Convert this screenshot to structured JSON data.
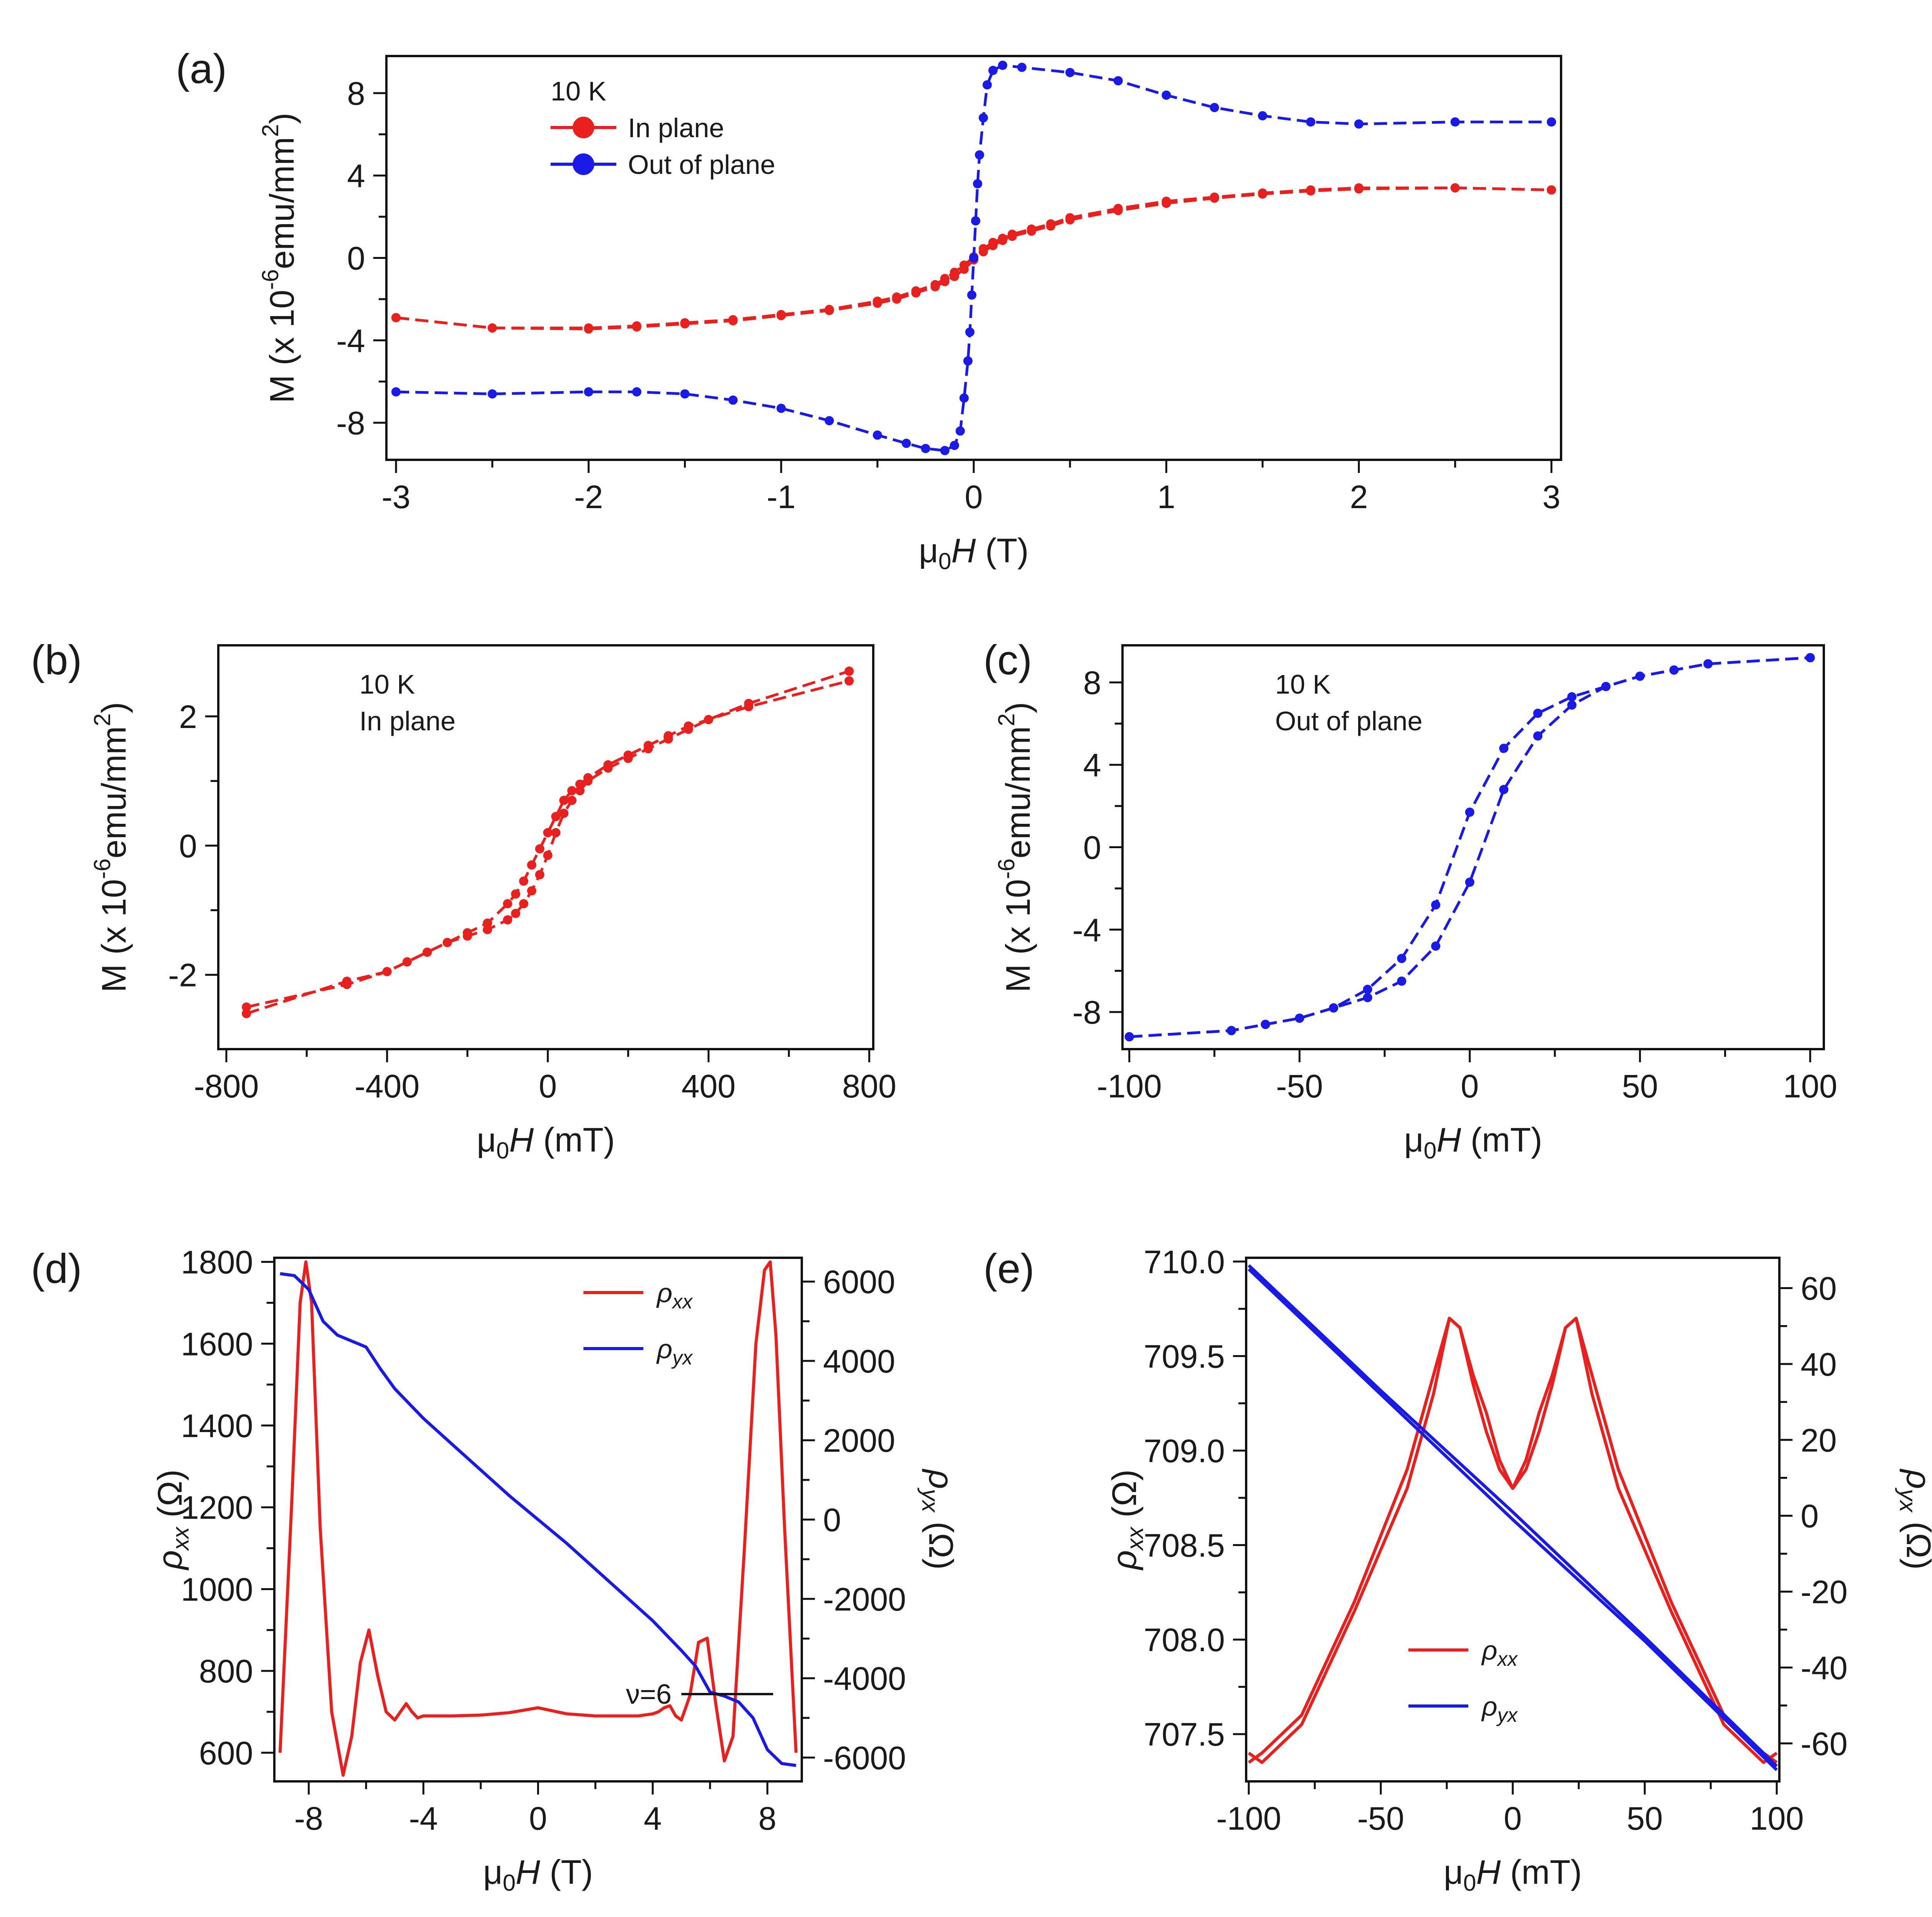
{
  "colors": {
    "in_plane": "#e8201e",
    "out_of_plane": "#1a1ae6",
    "rho_xx": "#e8201e",
    "rho_yx": "#1a1ae6"
  },
  "chart_data": [
    {
      "id": "a",
      "panel_label": "(a)",
      "type": "line",
      "xlabel": "μ0H (T)",
      "ylabel": "M (x 10^-6 emu/mm^2)",
      "xlim": [
        -3.05,
        3.05
      ],
      "ylim": [
        -9.8,
        9.8
      ],
      "xticks": [
        -3,
        -2,
        -1,
        0,
        1,
        2,
        3
      ],
      "yticks": [
        -8,
        -4,
        0,
        4,
        8
      ],
      "legend_title": "10 K",
      "legend": [
        "In plane",
        "Out of plane"
      ],
      "series": [
        {
          "name": "In plane",
          "color_key": "in_plane",
          "x": [
            -3,
            -2.5,
            -2,
            -1.75,
            -1.5,
            -1.25,
            -1,
            -0.75,
            -0.5,
            -0.4,
            -0.3,
            -0.2,
            -0.15,
            -0.1,
            -0.05,
            0,
            0.05,
            0.1,
            0.15,
            0.2,
            0.3,
            0.4,
            0.5,
            0.75,
            1,
            1.25,
            1.5,
            1.75,
            2,
            2.5,
            3
          ],
          "values_up": [
            -2.9,
            -3.4,
            -3.4,
            -3.3,
            -3.15,
            -3.0,
            -2.75,
            -2.5,
            -2.1,
            -1.9,
            -1.6,
            -1.3,
            -1.0,
            -0.7,
            -0.35,
            0.05,
            0.45,
            0.75,
            0.95,
            1.15,
            1.4,
            1.65,
            1.95,
            2.4,
            2.75,
            2.95,
            3.15,
            3.3,
            3.4,
            3.4,
            3.3
          ],
          "values_down": [
            -2.9,
            -3.4,
            -3.45,
            -3.35,
            -3.2,
            -3.05,
            -2.8,
            -2.55,
            -2.2,
            -2.0,
            -1.7,
            -1.4,
            -1.15,
            -0.9,
            -0.55,
            -0.1,
            0.3,
            0.6,
            0.85,
            1.05,
            1.3,
            1.55,
            1.85,
            2.3,
            2.65,
            2.9,
            3.1,
            3.25,
            3.35,
            3.4,
            3.3
          ]
        },
        {
          "name": "Out of plane",
          "color_key": "out_of_plane",
          "x": [
            -3,
            -2.5,
            -2,
            -1.75,
            -1.5,
            -1.25,
            -1,
            -0.75,
            -0.5,
            -0.35,
            -0.25,
            -0.15,
            -0.1,
            -0.07,
            -0.05,
            -0.03,
            -0.02,
            -0.01,
            0,
            0.01,
            0.02,
            0.03,
            0.05,
            0.07,
            0.1,
            0.15,
            0.25,
            0.5,
            0.75,
            1,
            1.25,
            1.5,
            1.75,
            2,
            2.5,
            3
          ],
          "values_up": [
            -6.5,
            -6.6,
            -6.5,
            -6.5,
            -6.6,
            -6.9,
            -7.3,
            -7.9,
            -8.6,
            -9.0,
            -9.25,
            -9.35,
            -9.1,
            -8.4,
            -6.8,
            -5.0,
            -3.6,
            -1.8,
            0.0,
            1.8,
            3.6,
            5.0,
            6.8,
            8.4,
            9.1,
            9.35,
            9.25,
            9.0,
            8.6,
            7.9,
            7.3,
            6.9,
            6.6,
            6.5,
            6.6,
            6.6
          ]
        }
      ]
    },
    {
      "id": "b",
      "panel_label": "(b)",
      "type": "line",
      "xlabel": "μ0H (mT)",
      "ylabel": "M (x 10^-6 emu/mm^2)",
      "xlim": [
        -820,
        810
      ],
      "ylim": [
        -3.15,
        3.1
      ],
      "xticks": [
        -800,
        -400,
        0,
        400,
        800
      ],
      "yticks": [
        -2,
        0,
        2
      ],
      "annotation": [
        "10 K",
        "In plane"
      ],
      "series": [
        {
          "name": "In plane",
          "color_key": "in_plane",
          "x": [
            -750,
            -500,
            -400,
            -350,
            -300,
            -250,
            -200,
            -150,
            -100,
            -80,
            -60,
            -40,
            -20,
            0,
            20,
            40,
            60,
            80,
            100,
            150,
            200,
            250,
            300,
            350,
            400,
            500,
            750
          ],
          "values_up": [
            -2.6,
            -2.1,
            -1.95,
            -1.8,
            -1.65,
            -1.5,
            -1.4,
            -1.3,
            -1.15,
            -1.05,
            -0.9,
            -0.7,
            -0.45,
            -0.15,
            0.2,
            0.5,
            0.7,
            0.85,
            1.0,
            1.2,
            1.35,
            1.5,
            1.65,
            1.8,
            1.95,
            2.2,
            2.7
          ],
          "values_down": [
            -2.5,
            -2.15,
            -1.95,
            -1.8,
            -1.65,
            -1.5,
            -1.35,
            -1.2,
            -0.9,
            -0.75,
            -0.55,
            -0.3,
            -0.05,
            0.2,
            0.45,
            0.7,
            0.85,
            0.95,
            1.05,
            1.25,
            1.4,
            1.55,
            1.7,
            1.85,
            1.95,
            2.15,
            2.55
          ]
        }
      ]
    },
    {
      "id": "c",
      "panel_label": "(c)",
      "type": "line",
      "xlabel": "μ0H (mT)",
      "ylabel": "M (x 10^-6 emu/mm^2)",
      "xlim": [
        -102,
        104
      ],
      "ylim": [
        -9.8,
        9.8
      ],
      "xticks": [
        -100,
        -50,
        0,
        50,
        100
      ],
      "yticks": [
        -8,
        -4,
        0,
        4,
        8
      ],
      "annotation": [
        "10 K",
        "Out of plane"
      ],
      "series": [
        {
          "name": "Out of plane",
          "color_key": "out_of_plane",
          "x": [
            -100,
            -70,
            -60,
            -50,
            -40,
            -30,
            -20,
            -10,
            0,
            10,
            20,
            30,
            40,
            50,
            60,
            70,
            100
          ],
          "values_up": [
            -9.2,
            -8.9,
            -8.6,
            -8.3,
            -7.8,
            -6.9,
            -5.4,
            -2.8,
            1.7,
            4.8,
            6.5,
            7.3,
            7.8,
            8.3,
            8.6,
            8.9,
            9.2
          ],
          "values_down": [
            -9.2,
            -8.9,
            -8.6,
            -8.3,
            -7.8,
            -7.3,
            -6.5,
            -4.8,
            -1.7,
            2.8,
            5.4,
            6.9,
            7.8,
            8.3,
            8.6,
            8.9,
            9.2
          ]
        }
      ]
    },
    {
      "id": "d",
      "panel_label": "(d)",
      "type": "line",
      "xlabel": "μ0H (T)",
      "ylabel": "ρxx (Ω)",
      "y2label": "ρyx (Ω)",
      "xlim": [
        -9.2,
        9.2
      ],
      "ylim": [
        530,
        1810
      ],
      "y2lim": [
        -6600,
        6600
      ],
      "xticks": [
        -8,
        -4,
        0,
        4,
        8
      ],
      "yticks": [
        600,
        800,
        1000,
        1200,
        1400,
        1600,
        1800
      ],
      "y2ticks": [
        -6000,
        -4000,
        -2000,
        0,
        2000,
        4000,
        6000
      ],
      "annotation": "ν=6",
      "legend": [
        "ρxx",
        "ρyx"
      ],
      "series": [
        {
          "name": "ρxx",
          "color_key": "rho_xx",
          "axis": "left",
          "x": [
            -9.0,
            -8.6,
            -8.3,
            -8.1,
            -7.9,
            -7.6,
            -7.2,
            -6.8,
            -6.5,
            -6.2,
            -5.9,
            -5.6,
            -5.3,
            -5.0,
            -4.8,
            -4.6,
            -4.4,
            -4.2,
            -4.0,
            -3.5,
            -3,
            -2,
            -1,
            0,
            1,
            2,
            3,
            3.5,
            4.0,
            4.2,
            4.4,
            4.6,
            4.8,
            5.0,
            5.3,
            5.6,
            5.9,
            6.2,
            6.5,
            6.8,
            7.2,
            7.6,
            7.9,
            8.1,
            8.3,
            8.6,
            9.0
          ],
          "values": [
            600,
            1200,
            1700,
            1800,
            1700,
            1150,
            700,
            545,
            640,
            820,
            900,
            790,
            700,
            680,
            700,
            720,
            700,
            685,
            690,
            690,
            690,
            692,
            698,
            710,
            695,
            690,
            690,
            690,
            695,
            700,
            710,
            715,
            690,
            680,
            740,
            870,
            880,
            720,
            580,
            640,
            1100,
            1600,
            1780,
            1800,
            1620,
            1150,
            600
          ]
        },
        {
          "name": "ρyx",
          "color_key": "rho_yx",
          "axis": "right",
          "x": [
            -9.0,
            -8.5,
            -8,
            -7.5,
            -7,
            -6.5,
            -6,
            -5.5,
            -5,
            -4,
            -3,
            -2,
            -1,
            0,
            1,
            2,
            3,
            4,
            5,
            5.5,
            6,
            6.5,
            7,
            7.5,
            8,
            8.5,
            9.0
          ],
          "values": [
            6200,
            6150,
            5800,
            5000,
            4650,
            4500,
            4350,
            3800,
            3300,
            2550,
            1900,
            1250,
            600,
            0,
            -600,
            -1250,
            -1900,
            -2550,
            -3300,
            -3700,
            -4350,
            -4450,
            -4600,
            -5000,
            -5800,
            -6150,
            -6200
          ]
        }
      ]
    },
    {
      "id": "e",
      "panel_label": "(e)",
      "type": "line",
      "xlabel": "μ0H (mT)",
      "ylabel": "ρxx (Ω)",
      "y2label": "ρyx (Ω)",
      "xlim": [
        -101,
        101
      ],
      "ylim": [
        707.25,
        710.02
      ],
      "y2lim": [
        -70,
        68
      ],
      "xticks": [
        -100,
        -50,
        0,
        50,
        100
      ],
      "yticks": [
        707.5,
        708.0,
        708.5,
        709.0,
        709.5,
        710.0
      ],
      "yticks_labels": [
        "707.5",
        "708.0",
        "708.5",
        "709.0",
        "709.5",
        "710.0"
      ],
      "y2ticks": [
        -60,
        -40,
        -20,
        0,
        20,
        40,
        60
      ],
      "legend": [
        "ρxx",
        "ρyx"
      ],
      "series": [
        {
          "name": "ρxx",
          "color_key": "rho_xx",
          "axis": "left",
          "x": [
            -100,
            -95,
            -80,
            -60,
            -40,
            -30,
            -24,
            -20,
            -15,
            -10,
            -5,
            0,
            5,
            10,
            15,
            20,
            24,
            30,
            40,
            60,
            80,
            95,
            100
          ],
          "values_a": [
            707.35,
            707.4,
            707.6,
            708.2,
            708.9,
            709.4,
            709.7,
            709.65,
            709.4,
            709.2,
            708.95,
            708.8,
            708.95,
            709.2,
            709.4,
            709.65,
            709.7,
            709.4,
            708.9,
            708.2,
            707.6,
            707.4,
            707.35
          ],
          "values_b": [
            707.4,
            707.35,
            707.55,
            708.15,
            708.8,
            709.3,
            709.7,
            709.65,
            709.35,
            709.1,
            708.9,
            708.8,
            708.9,
            709.1,
            709.35,
            709.65,
            709.7,
            709.3,
            708.8,
            708.15,
            707.55,
            707.35,
            707.4
          ]
        },
        {
          "name": "ρyx",
          "color_key": "rho_yx",
          "axis": "right",
          "x": [
            -100,
            -50,
            0,
            50,
            100
          ],
          "values_a": [
            66,
            33,
            1,
            -32,
            -66
          ],
          "values_b": [
            65,
            32,
            -1,
            -33,
            -67
          ]
        }
      ]
    }
  ]
}
